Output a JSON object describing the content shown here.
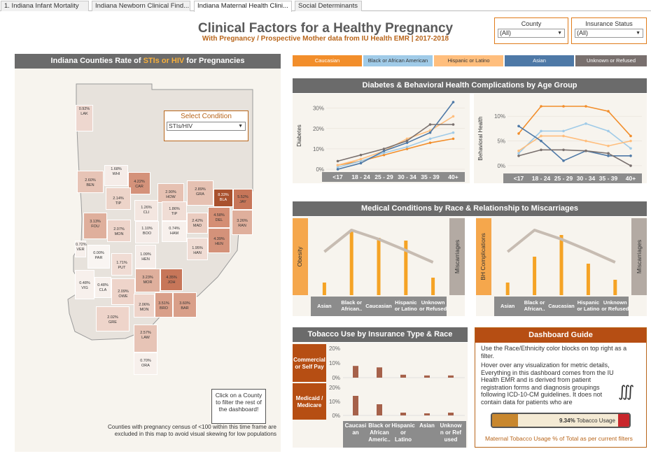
{
  "tabs": [
    {
      "label": "1. Indiana Infant Mortality"
    },
    {
      "label": "Indiana Newborn Clinical Find..."
    },
    {
      "label": "Indiana Maternal Health Clini..."
    },
    {
      "label": "Social Determinants"
    }
  ],
  "header": {
    "title": "Clinical Factors for a Healthy Pregnancy",
    "subtitle": "With Pregnancy / Prospective Mother data from IU Health EMR | 2017-2018"
  },
  "filters": {
    "county": {
      "label": "County",
      "value": "(All)"
    },
    "insurance": {
      "label": "Insurance Status",
      "value": "(All)"
    }
  },
  "map": {
    "title_pre": "Indiana Counties Rate of ",
    "title_hl": "STIs or HIV",
    "title_post": " for Pregnancies",
    "select_label": "Select Condition",
    "select_value": "STIs/HIV",
    "click_note": "Click on a County to filter the rest of the dashboard!",
    "footnote": "Counties with pregnancy census of <100 within this time frame are excluded in this map to avoid visual skewing for low populations",
    "counties": [
      {
        "code": "LAK",
        "rate": "0.92%"
      },
      {
        "code": "WHI",
        "rate": "1.68%"
      },
      {
        "code": "CAR",
        "rate": "4.22%"
      },
      {
        "code": "BEN",
        "rate": "2.60%"
      },
      {
        "code": "TIP",
        "rate": "2.14%"
      },
      {
        "code": "HOW",
        "rate": "2.90%"
      },
      {
        "code": "GRA",
        "rate": "2.89%"
      },
      {
        "code": "BLA",
        "rate": "8.33%"
      },
      {
        "code": "JAY",
        "rate": "5.52%"
      },
      {
        "code": "CLI",
        "rate": "1.26%"
      },
      {
        "code": "TIP",
        "rate": "1.86%"
      },
      {
        "code": "DEL",
        "rate": "4.58%"
      },
      {
        "code": "FOU",
        "rate": "3.13%"
      },
      {
        "code": "MON",
        "rate": "2.07%"
      },
      {
        "code": "MAD",
        "rate": "2.42%"
      },
      {
        "code": "RAN",
        "rate": "3.26%"
      },
      {
        "code": "BOO",
        "rate": "1.10%"
      },
      {
        "code": "HAM",
        "rate": "0.74%"
      },
      {
        "code": "HEN",
        "rate": "4.39%"
      },
      {
        "code": "VER",
        "rate": "0.72%"
      },
      {
        "code": "PAR",
        "rate": "0.00%"
      },
      {
        "code": "HEN",
        "rate": "1.09%"
      },
      {
        "code": "HAN",
        "rate": "1.95%"
      },
      {
        "code": "PUT",
        "rate": "1.71%"
      },
      {
        "code": "VIG",
        "rate": "0.48%"
      },
      {
        "code": "CLA",
        "rate": "0.48%"
      },
      {
        "code": "OWE",
        "rate": "2.09%"
      },
      {
        "code": "MOR",
        "rate": "3.23%"
      },
      {
        "code": "JOH",
        "rate": "4.35%"
      },
      {
        "code": "MON",
        "rate": "2.06%"
      },
      {
        "code": "BRO",
        "rate": "3.51%"
      },
      {
        "code": "BAR",
        "rate": "3.60%"
      },
      {
        "code": "GRE",
        "rate": "2.02%"
      },
      {
        "code": "LAW",
        "rate": "2.57%"
      },
      {
        "code": "ORA",
        "rate": "0.70%"
      }
    ]
  },
  "race_legend": [
    {
      "label": "Caucasian",
      "color": "#f28e2b"
    },
    {
      "label": "Black or African American",
      "color": "#a0cbe8"
    },
    {
      "label": "Hispanic or Latino",
      "color": "#ffbe7d"
    },
    {
      "label": "Asian",
      "color": "#4e79a7"
    },
    {
      "label": "Unknown or Refused",
      "color": "#79706e"
    }
  ],
  "panels": {
    "age": "Diabetes & Behavioral Health Complications by Age Group",
    "race": "Medical Conditions by Race & Relationship to Miscarriages",
    "tobacco": "Tobacco Use by Insurance Type & Race",
    "guide": "Dashboard Guide"
  },
  "chart_data": [
    {
      "type": "line",
      "title": "Diabetes",
      "ylabel": "Diabetes",
      "categories": [
        "<17",
        "18 - 24",
        "25 - 29",
        "30 - 34",
        "35 - 39",
        "40+"
      ],
      "ylim": [
        0,
        33
      ],
      "yticks": [
        "0%",
        "10%",
        "20%",
        "30%"
      ],
      "series": [
        {
          "name": "Caucasian",
          "values": [
            2,
            4,
            7,
            10,
            13,
            15
          ]
        },
        {
          "name": "Black or African American",
          "values": [
            1,
            4,
            8,
            11,
            15,
            18
          ]
        },
        {
          "name": "Hispanic or Latino",
          "values": [
            2,
            5,
            9,
            15,
            19,
            26
          ]
        },
        {
          "name": "Asian",
          "values": [
            0,
            3,
            9,
            13,
            18,
            33
          ]
        },
        {
          "name": "Unknown or Refused",
          "values": [
            4,
            7,
            10,
            14,
            22,
            22
          ]
        }
      ]
    },
    {
      "type": "line",
      "title": "Behavioral Health",
      "ylabel": "Behavioral Health",
      "categories": [
        "<17",
        "18 - 24",
        "25 - 29",
        "30 - 34",
        "35 - 39",
        "40+"
      ],
      "ylim": [
        -1,
        12
      ],
      "yticks": [
        "0%",
        "5%",
        "10%"
      ],
      "series": [
        {
          "name": "Caucasian",
          "values": [
            6.5,
            12,
            12,
            12,
            11,
            6
          ]
        },
        {
          "name": "Black or African American",
          "values": [
            2.5,
            7,
            7,
            8.5,
            7,
            3.5
          ]
        },
        {
          "name": "Hispanic or Latino",
          "values": [
            3,
            6,
            6,
            5,
            4,
            5
          ]
        },
        {
          "name": "Asian",
          "values": [
            8,
            5,
            1,
            3,
            2,
            2
          ]
        },
        {
          "name": "Unknown or Refused",
          "values": [
            2,
            3.2,
            3.2,
            3,
            2.5,
            0
          ]
        }
      ]
    },
    {
      "type": "bar",
      "title": "Obesity",
      "ylabel": "Obesity",
      "y2label": "Miscarriages",
      "categories": [
        "Asian",
        "Black or African..",
        "Caucasian",
        "Hispanic or Latino",
        "Unknown or Refused"
      ],
      "values": [
        18,
        93,
        82,
        78,
        25
      ],
      "line_values": [
        62,
        93,
        80,
        64,
        47
      ]
    },
    {
      "type": "bar",
      "title": "BH Complications",
      "ylabel": "BH Complications",
      "y2label": "Miscarriages",
      "categories": [
        "Asian",
        "Black or African..",
        "Caucasian",
        "Hispanic or Latino",
        "Unknown or Refused"
      ],
      "values": [
        18,
        55,
        86,
        45,
        22
      ],
      "line_values": [
        62,
        93,
        80,
        64,
        47
      ]
    },
    {
      "type": "bar",
      "title": "Tobacco Use by Insurance Type & Race",
      "categories": [
        "Caucasian",
        "Black or African Americ..",
        "Hispanic or Latino",
        "Asian",
        "Unknown or Refused"
      ],
      "yticks": [
        "0%",
        "10%",
        "20%"
      ],
      "series": [
        {
          "name": "Commercial or Self Pay",
          "values": [
            8,
            7,
            2,
            1.5,
            1.5
          ]
        },
        {
          "name": "Medicaid / Medicare",
          "values": [
            14,
            8,
            2,
            1.5,
            2
          ]
        }
      ]
    }
  ],
  "tobacco_rows": [
    {
      "label": "Commercial or Self Pay"
    },
    {
      "label": "Medicaid / Medicare"
    }
  ],
  "tobacco_cats": [
    {
      "l1": "Caucasi",
      "l2": "an",
      "l3": ""
    },
    {
      "l1": "Black or",
      "l2": "African",
      "l3": "Americ.."
    },
    {
      "l1": "Hispanic",
      "l2": "or",
      "l3": "Latino"
    },
    {
      "l1": "Asian",
      "l2": "",
      "l3": ""
    },
    {
      "l1": "Unknow",
      "l2": "n or Ref",
      "l3": "used"
    }
  ],
  "guide": {
    "text1": "Use the Race/Ethnicity color blocks on top right as a filter.",
    "text2": "Hover over any visualization for metric details, ",
    "text3": "Everything in this dashboard comes from the IU Health EMR and is derived from patient registration forms and diagnosis groupings following ICD-10-CM guidelines. It does not contain data for patients who are",
    "tobacco_pct": "9.34%",
    "tobacco_label": "Tobacco Usage",
    "tobacco_value": 9.34,
    "caption": "Maternal Tobacco Usage % of Total as per current filters"
  }
}
